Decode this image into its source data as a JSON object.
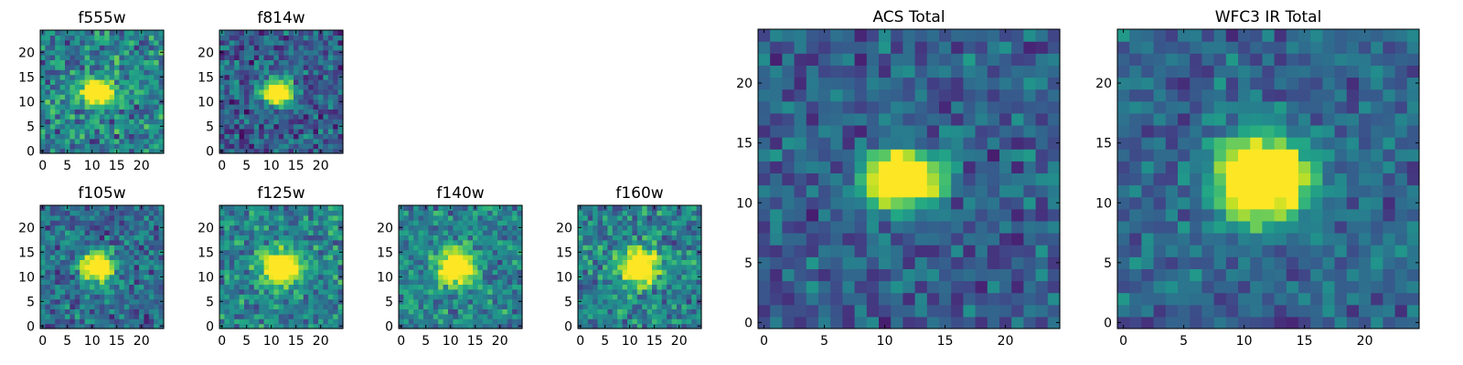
{
  "colormap": "viridis",
  "chart_data": [
    {
      "type": "heatmap",
      "title": "f555w",
      "xticks": [
        0,
        5,
        10,
        15,
        20
      ],
      "yticks": [
        0,
        5,
        10,
        15,
        20
      ],
      "xlim": [
        -0.5,
        24.5
      ],
      "ylim": [
        -0.5,
        24.5
      ],
      "grid_size": 25,
      "source": {
        "center": [
          11,
          12
        ],
        "sigma": [
          2.0,
          1.6
        ],
        "noise": 0.35,
        "background": 0.45,
        "peak": 1.3,
        "seed": 11
      }
    },
    {
      "type": "heatmap",
      "title": "f814w",
      "xticks": [
        0,
        5,
        10,
        15,
        20
      ],
      "yticks": [
        0,
        5,
        10,
        15,
        20
      ],
      "xlim": [
        -0.5,
        24.5
      ],
      "ylim": [
        -0.5,
        24.5
      ],
      "grid_size": 25,
      "source": {
        "center": [
          11,
          12
        ],
        "sigma": [
          2.0,
          1.6
        ],
        "noise": 0.3,
        "background": 0.3,
        "peak": 1.3,
        "seed": 23
      }
    },
    {
      "type": "heatmap",
      "title": "f105w",
      "xticks": [
        0,
        5,
        10,
        15,
        20
      ],
      "yticks": [
        0,
        5,
        10,
        15,
        20
      ],
      "xlim": [
        -0.5,
        24.5
      ],
      "ylim": [
        -0.5,
        24.5
      ],
      "grid_size": 25,
      "source": {
        "center": [
          11,
          12
        ],
        "sigma": [
          2.3,
          2.0
        ],
        "noise": 0.3,
        "background": 0.35,
        "peak": 1.2,
        "seed": 37
      }
    },
    {
      "type": "heatmap",
      "title": "f125w",
      "xticks": [
        0,
        5,
        10,
        15,
        20
      ],
      "yticks": [
        0,
        5,
        10,
        15,
        20
      ],
      "xlim": [
        -0.5,
        24.5
      ],
      "ylim": [
        -0.5,
        24.5
      ],
      "grid_size": 25,
      "source": {
        "center": [
          12,
          12
        ],
        "sigma": [
          2.6,
          2.3
        ],
        "noise": 0.3,
        "background": 0.45,
        "peak": 1.0,
        "seed": 41
      }
    },
    {
      "type": "heatmap",
      "title": "f140w",
      "xticks": [
        0,
        5,
        10,
        15,
        20
      ],
      "yticks": [
        0,
        5,
        10,
        15,
        20
      ],
      "xlim": [
        -0.5,
        24.5
      ],
      "ylim": [
        -0.5,
        24.5
      ],
      "grid_size": 25,
      "source": {
        "center": [
          11,
          12
        ],
        "sigma": [
          2.6,
          2.4
        ],
        "noise": 0.3,
        "background": 0.45,
        "peak": 0.95,
        "seed": 53
      }
    },
    {
      "type": "heatmap",
      "title": "f160w",
      "xticks": [
        0,
        5,
        10,
        15,
        20
      ],
      "yticks": [
        0,
        5,
        10,
        15,
        20
      ],
      "xlim": [
        -0.5,
        24.5
      ],
      "ylim": [
        -0.5,
        24.5
      ],
      "grid_size": 25,
      "source": {
        "center": [
          12,
          12
        ],
        "sigma": [
          2.6,
          2.4
        ],
        "noise": 0.3,
        "background": 0.45,
        "peak": 1.0,
        "seed": 67
      }
    },
    {
      "type": "heatmap",
      "title": "ACS Total",
      "xticks": [
        0,
        5,
        10,
        15,
        20
      ],
      "yticks": [
        0,
        5,
        10,
        15,
        20
      ],
      "xlim": [
        -0.5,
        24.5
      ],
      "ylim": [
        -0.5,
        24.5
      ],
      "grid_size": 25,
      "source": {
        "center": [
          11.5,
          12
        ],
        "sigma": [
          2.0,
          1.5
        ],
        "noise": 0.25,
        "background": 0.3,
        "peak": 1.4,
        "seed": 79
      }
    },
    {
      "type": "heatmap",
      "title": "WFC3 IR Total",
      "xticks": [
        0,
        5,
        10,
        15,
        20
      ],
      "yticks": [
        0,
        5,
        10,
        15,
        20
      ],
      "xlim": [
        -0.5,
        24.5
      ],
      "ylim": [
        -0.5,
        24.5
      ],
      "grid_size": 25,
      "source": {
        "center": [
          11.5,
          12
        ],
        "sigma": [
          2.6,
          2.3
        ],
        "noise": 0.22,
        "background": 0.32,
        "peak": 1.3,
        "seed": 97
      }
    }
  ]
}
